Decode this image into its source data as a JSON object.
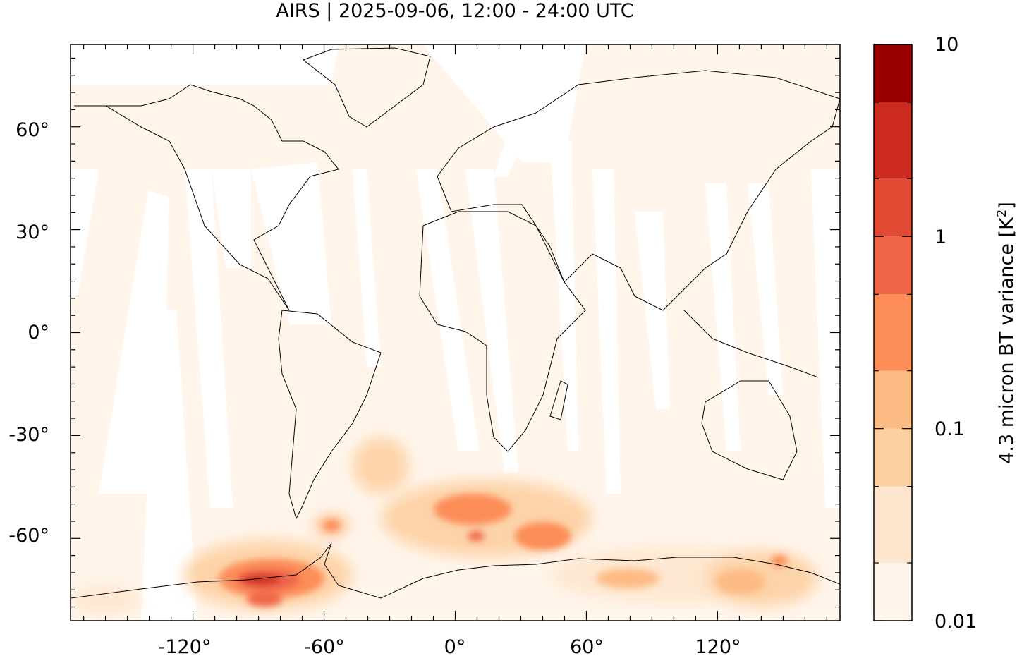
{
  "title": "AIRS | 2025-09-06, 12:00 - 24:00 UTC",
  "colorbar": {
    "label_main": "4.3 micron BT variance [K",
    "label_sup": "2",
    "label_close": "]",
    "tick_labels": [
      "10",
      "1",
      "0.1",
      "0.01"
    ],
    "levels": [
      0.01,
      0.02,
      0.05,
      0.1,
      0.2,
      0.5,
      1,
      2,
      5,
      10
    ],
    "colors": [
      "#fff5eb",
      "#fee6ce",
      "#fdd0a2",
      "#fdbb84",
      "#fc8d59",
      "#ef6548",
      "#e34a33",
      "#cc2a1e",
      "#990000"
    ]
  },
  "map": {
    "x_ticks": [
      "-120°",
      "-60°",
      "0°",
      "60°",
      "120°"
    ],
    "y_ticks": [
      "60°",
      "30°",
      "0°",
      "-30°",
      "-60°"
    ],
    "background_color": "#fff5eb",
    "swath_gap_color": "#ffffff",
    "coast_color": "#000000"
  },
  "chart_data": {
    "type": "heatmap",
    "title": "AIRS | 2025-09-06, 12:00 - 24:00 UTC",
    "xlabel": "",
    "ylabel": "",
    "colorbar_label": "4.3 micron BT variance [K^2]",
    "xlim": [
      -176,
      176
    ],
    "ylim": [
      -84,
      84
    ],
    "x_ticks": [
      -120,
      -60,
      0,
      60,
      120
    ],
    "y_ticks": [
      60,
      30,
      0,
      -30,
      -60
    ],
    "color_scale": "log",
    "clim": [
      0.01,
      10
    ],
    "hotspots": [
      {
        "lon": -85,
        "lat": -72,
        "value": 5
      },
      {
        "lon": -80,
        "lat": -76,
        "value": 3
      },
      {
        "lon": 10,
        "lat": -59,
        "value": 2
      },
      {
        "lon": 40,
        "lat": -61,
        "value": 1
      },
      {
        "lon": 5,
        "lat": -52,
        "value": 0.8
      },
      {
        "lon": -58,
        "lat": -55,
        "value": 0.8
      },
      {
        "lon": 128,
        "lat": -71,
        "value": 0.5
      },
      {
        "lon": 145,
        "lat": -66,
        "value": 0.5
      },
      {
        "lon": -40,
        "lat": -38,
        "value": 0.15
      }
    ]
  }
}
